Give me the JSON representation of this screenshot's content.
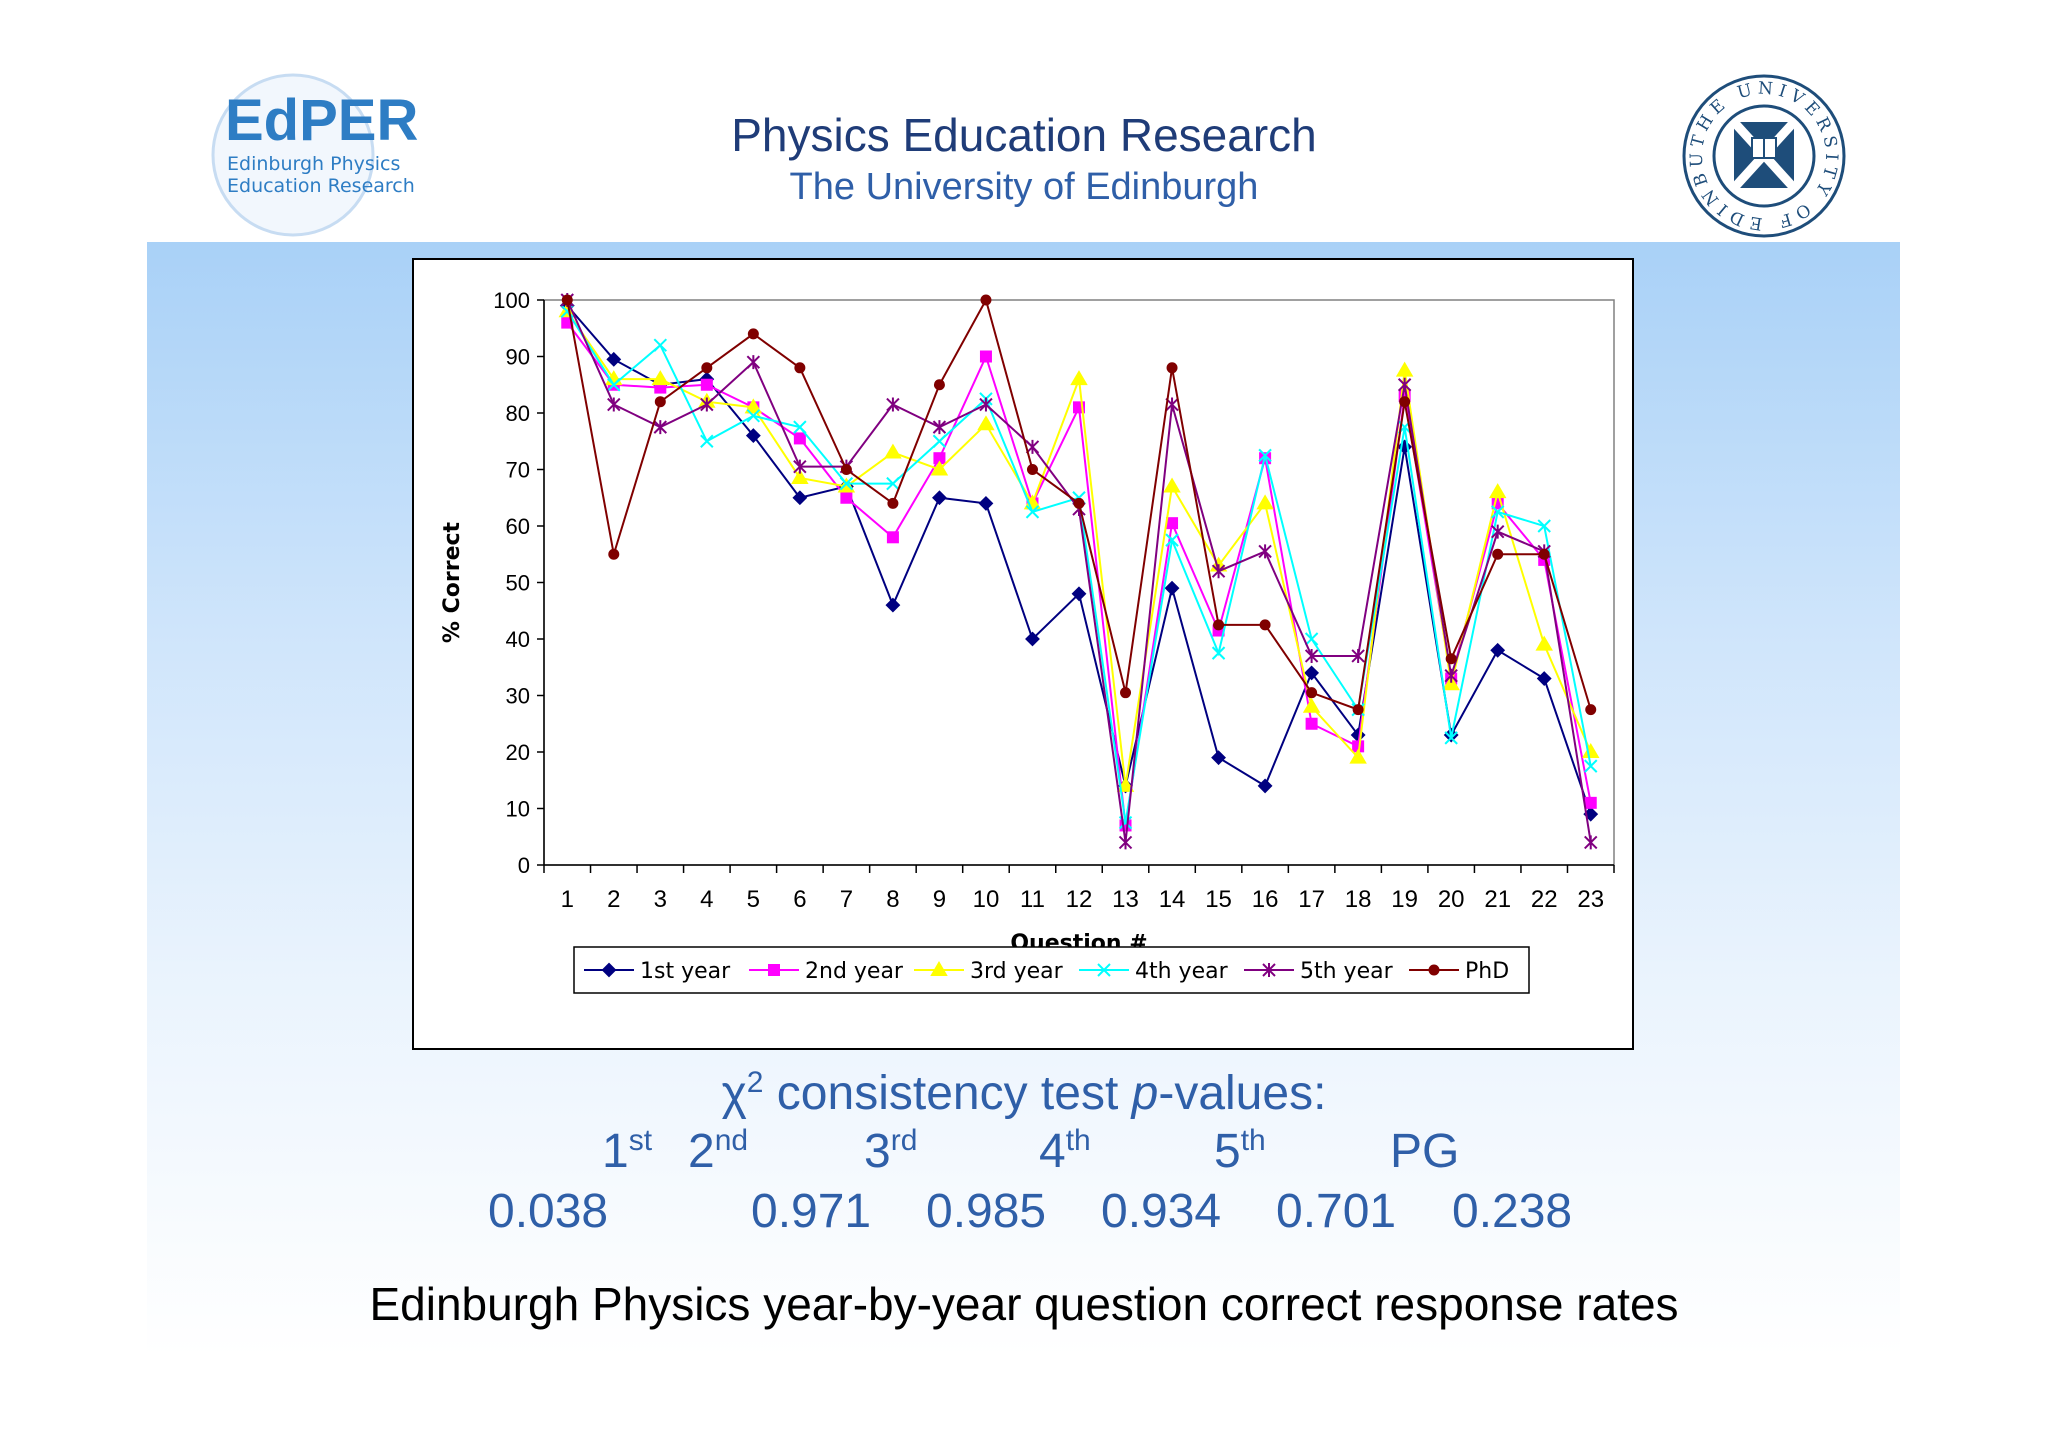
{
  "header": {
    "title": "Physics Education Research",
    "subtitle": "The University of Edinburgh"
  },
  "logos": {
    "edper_main": "EdPER",
    "edper_line1": "Edinburgh Physics",
    "edper_line2": "Education Research",
    "university_ring": "THE UNIVERSITY OF EDINBURGH"
  },
  "chart_data": {
    "type": "line",
    "title": "",
    "xlabel": "Question #",
    "ylabel": "% Correct",
    "ylim": [
      0,
      100
    ],
    "yticks": [
      0,
      10,
      20,
      30,
      40,
      50,
      60,
      70,
      80,
      90,
      100
    ],
    "categories": [
      "1",
      "2",
      "3",
      "4",
      "5",
      "6",
      "7",
      "8",
      "9",
      "10",
      "11",
      "12",
      "13",
      "14",
      "15",
      "16",
      "17",
      "18",
      "19",
      "20",
      "21",
      "22",
      "23"
    ],
    "legend_position": "bottom",
    "grid": false,
    "series": [
      {
        "name": "1st year",
        "color": "#000080",
        "marker": "diamond",
        "values": [
          99,
          89.5,
          85,
          86,
          76,
          65,
          67,
          46,
          65,
          64,
          40,
          48,
          14,
          49,
          19,
          14,
          34,
          23,
          74,
          23,
          38,
          33,
          9
        ]
      },
      {
        "name": "2nd year",
        "color": "#ff00ff",
        "marker": "square",
        "values": [
          96,
          85,
          84.5,
          85,
          81,
          75.5,
          65,
          58,
          72,
          90,
          64,
          81,
          7,
          60.5,
          41.5,
          72,
          25,
          21,
          83,
          33,
          64,
          54,
          11
        ]
      },
      {
        "name": "3rd year",
        "color": "#ffff00",
        "marker": "triangle",
        "values": [
          98,
          86,
          86,
          82,
          81,
          68.5,
          67,
          73,
          70,
          78,
          64,
          86,
          14,
          67,
          53,
          64,
          28,
          19,
          87.5,
          32,
          66,
          39,
          20
        ]
      },
      {
        "name": "4th year",
        "color": "#00ffff",
        "marker": "x",
        "values": [
          98,
          85,
          92,
          75,
          79.5,
          77.5,
          67.5,
          67.5,
          75,
          82.5,
          62.5,
          65,
          7.5,
          57.5,
          37.5,
          72.5,
          40,
          27.5,
          77.5,
          22.5,
          62.5,
          60,
          17.5
        ]
      },
      {
        "name": "5th year",
        "color": "#800080",
        "marker": "star",
        "values": [
          100,
          81.5,
          77.5,
          81.5,
          89,
          70.5,
          70.5,
          81.5,
          77.5,
          81.5,
          74,
          63,
          4,
          81.5,
          52,
          55.5,
          37,
          37,
          85,
          33.5,
          59,
          55.5,
          4
        ]
      },
      {
        "name": "PhD",
        "color": "#800000",
        "marker": "circle",
        "values": [
          100,
          55,
          82,
          88,
          94,
          88,
          70,
          64,
          85,
          100,
          70,
          64,
          30.5,
          88,
          42.5,
          42.5,
          30.5,
          27.5,
          82,
          36.5,
          55,
          55,
          27.5
        ]
      }
    ]
  },
  "chi_test": {
    "chi": "χ",
    "chi_sup": "2",
    "rest": " consistency test ",
    "p_italic": "p",
    "suffix": "-values:"
  },
  "ordinals": [
    {
      "num": "1",
      "sup": "st"
    },
    {
      "num": "2",
      "sup": "nd"
    },
    {
      "num": "3",
      "sup": "rd"
    },
    {
      "num": "4",
      "sup": "th"
    },
    {
      "num": "5",
      "sup": "th"
    },
    {
      "num": "PG",
      "sup": ""
    }
  ],
  "p_values": [
    "0.038",
    "0.971",
    "0.985",
    "0.934",
    "0.701",
    "0.238"
  ],
  "caption": "Edinburgh Physics year-by-year question correct response rates"
}
